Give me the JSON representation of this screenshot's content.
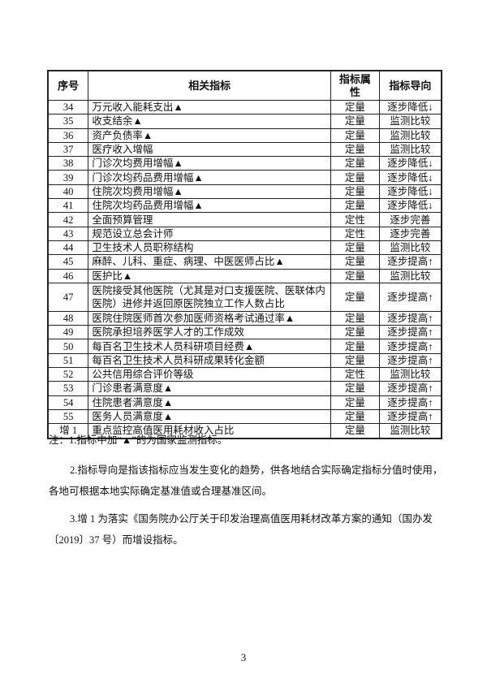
{
  "table": {
    "headers": [
      "序号",
      "相关指标",
      "指标属性",
      "指标导向"
    ],
    "rows": [
      [
        "34",
        "万元收入能耗支出▲",
        "定量",
        "逐步降低↓"
      ],
      [
        "35",
        "收支结余▲",
        "定量",
        "监测比较"
      ],
      [
        "36",
        "资产负债率▲",
        "定量",
        "监测比较"
      ],
      [
        "37",
        "医疗收入增幅",
        "定量",
        "监测比较"
      ],
      [
        "38",
        "门诊次均费用增幅▲",
        "定量",
        "逐步降低↓"
      ],
      [
        "39",
        "门诊次均药品费用增幅▲",
        "定量",
        "逐步降低↓"
      ],
      [
        "40",
        "住院次均费用增幅▲",
        "定量",
        "逐步降低↓"
      ],
      [
        "41",
        "住院次均药品费用增幅▲",
        "定量",
        "逐步降低↓"
      ],
      [
        "42",
        "全面预算管理",
        "定性",
        "逐步完善"
      ],
      [
        "43",
        "规范设立总会计师",
        "定性",
        "逐步完善"
      ],
      [
        "44",
        "卫生技术人员职称结构",
        "定量",
        "监测比较"
      ],
      [
        "45",
        "麻醉、儿科、重症、病理、中医医师占比▲",
        "定量",
        "逐步提高↑"
      ],
      [
        "46",
        "医护比▲",
        "定量",
        "监测比较"
      ],
      [
        "47",
        "医院接受其他医院（尤其是对口支援医院、医联体内医院）进修并返回原医院独立工作人数占比",
        "定量",
        "逐步提高↑"
      ],
      [
        "48",
        "医院住院医师首次参加医师资格考试通过率▲",
        "定量",
        "逐步提高↑"
      ],
      [
        "49",
        "医院承担培养医学人才的工作成效",
        "定量",
        "逐步提高↑"
      ],
      [
        "50",
        "每百名卫生技术人员科研项目经费▲",
        "定量",
        "逐步提高↑"
      ],
      [
        "51",
        "每百名卫生技术人员科研成果转化金额",
        "定量",
        "逐步提高↑"
      ],
      [
        "52",
        "公共信用综合评价等级",
        "定性",
        "监测比较"
      ],
      [
        "53",
        "门诊患者满意度▲",
        "定量",
        "逐步提高↑"
      ],
      [
        "54",
        "住院患者满意度▲",
        "定量",
        "逐步提高↑"
      ],
      [
        "55",
        "医务人员满意度▲",
        "定量",
        "逐步提高↑"
      ],
      [
        "增 1",
        "重点监控高值医用耗材收入占比",
        "定量",
        "监测比较"
      ]
    ]
  },
  "notes": {
    "n1": "注：1.指标中加“▲”的为国家监测指标。",
    "n2": "2.指标导向是指该指标应当发生变化的趋势，供各地结合实际确定指标分值时使用，各地可根据本地实际确定基准值或合理基准区间。",
    "n3": "3.增 1 为落实《国务院办公厅关于印发治理高值医用耗材改革方案的通知（国办发〔2019〕37 号）而增设指标。"
  },
  "page_number": "3"
}
